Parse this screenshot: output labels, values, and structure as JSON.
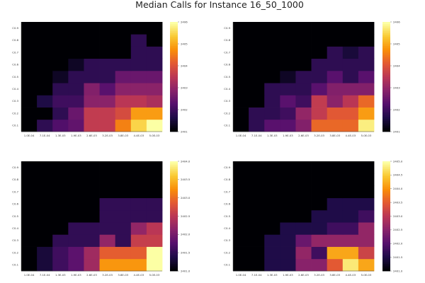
{
  "figure_title": "Median Calls for Instance 16_50_1000",
  "colormap": "inferno",
  "colormap_stops": [
    "#000004",
    "#1f0c48",
    "#550f6d",
    "#88226a",
    "#ba3655",
    "#e35933",
    "#f98e09",
    "#f9c932",
    "#fcffa4"
  ],
  "chart_data": [
    {
      "type": "heatmap",
      "title": "",
      "xlabel": "",
      "ylabel": "",
      "x": [
        "1.0E-04",
        "7.1E-04",
        "1.3E-03",
        "1.9E-03",
        "2.6E-03",
        "3.2E-03",
        "3.8E-03",
        "4.4E-03",
        "5.0E-03"
      ],
      "y": [
        "C0.1",
        "C0.2",
        "C0.3",
        "C0.4",
        "C0.5",
        "C0.6",
        "C0.7",
        "C0.8",
        "C0.9"
      ],
      "z": [
        [
          2401.0,
          2401.8,
          2402.2,
          2402.4,
          2403.6,
          2403.6,
          2404.6,
          2405.5,
          2406.0
        ],
        [
          2401.0,
          2401.0,
          2401.8,
          2402.5,
          2403.6,
          2403.6,
          2403.9,
          2404.9,
          2404.9
        ],
        [
          2401.0,
          2401.6,
          2402.0,
          2402.0,
          2402.9,
          2402.9,
          2403.5,
          2403.5,
          2403.3
        ],
        [
          2401.0,
          2401.0,
          2401.8,
          2401.8,
          2402.8,
          2402.3,
          2402.9,
          2402.9,
          2402.9
        ],
        [
          2401.0,
          2401.0,
          2401.3,
          2401.8,
          2401.8,
          2401.8,
          2402.5,
          2402.5,
          2402.5
        ],
        [
          2401.0,
          2401.0,
          2401.0,
          2401.3,
          2401.8,
          2401.8,
          2401.8,
          2401.8,
          2401.8
        ],
        [
          2401.0,
          2401.0,
          2401.0,
          2401.0,
          2401.0,
          2401.0,
          2401.0,
          2401.8,
          2401.8
        ],
        [
          2401.0,
          2401.0,
          2401.0,
          2401.0,
          2401.0,
          2401.0,
          2401.0,
          2401.8,
          2401.0
        ],
        [
          2401.0,
          2401.0,
          2401.0,
          2401.0,
          2401.0,
          2401.0,
          2401.0,
          2401.0,
          2401.0
        ]
      ],
      "zlim": [
        2401,
        2406
      ],
      "colorbar_ticks": [
        "2401",
        "2402",
        "2403",
        "2404",
        "2405",
        "2406"
      ],
      "legend": "colorbar-right",
      "grid": false
    },
    {
      "type": "heatmap",
      "title": "",
      "xlabel": "",
      "ylabel": "",
      "x": [
        "1.0E-04",
        "7.1E-04",
        "1.3E-03",
        "1.9E-03",
        "2.6E-03",
        "3.2E-03",
        "3.8E-03",
        "4.4E-03",
        "5.0E-03"
      ],
      "y": [
        "C0.1",
        "C0.2",
        "C0.3",
        "C0.4",
        "C0.5",
        "C0.6",
        "C0.7",
        "C0.8",
        "C0.9"
      ],
      "z": [
        [
          2401.0,
          2401.8,
          2402.3,
          2402.3,
          2402.8,
          2404.3,
          2404.3,
          2404.3,
          2405.8
        ],
        [
          2401.0,
          2401.8,
          2401.8,
          2402.0,
          2403.0,
          2403.6,
          2404.1,
          2404.1,
          2404.9
        ],
        [
          2401.0,
          2401.0,
          2401.8,
          2402.3,
          2402.0,
          2403.6,
          2402.9,
          2403.5,
          2404.3
        ],
        [
          2401.0,
          2401.0,
          2401.8,
          2401.8,
          2401.8,
          2402.3,
          2402.8,
          2402.8,
          2402.8
        ],
        [
          2401.0,
          2401.0,
          2401.0,
          2401.3,
          2401.8,
          2401.8,
          2402.3,
          2401.8,
          2402.3
        ],
        [
          2401.0,
          2401.0,
          2401.0,
          2401.0,
          2401.0,
          2401.8,
          2401.8,
          2401.8,
          2401.8
        ],
        [
          2401.0,
          2401.0,
          2401.0,
          2401.0,
          2401.0,
          2401.0,
          2401.8,
          2401.5,
          2401.8
        ],
        [
          2401.0,
          2401.0,
          2401.0,
          2401.0,
          2401.0,
          2401.0,
          2401.0,
          2401.0,
          2401.0
        ],
        [
          2401.0,
          2401.0,
          2401.0,
          2401.0,
          2401.0,
          2401.0,
          2401.0,
          2401.0,
          2401.0
        ]
      ],
      "zlim": [
        2401,
        2406
      ],
      "colorbar_ticks": [
        "2401",
        "2402",
        "2403",
        "2404",
        "2405",
        "2406"
      ],
      "legend": "colorbar-right",
      "grid": false
    },
    {
      "type": "heatmap",
      "title": "",
      "xlabel": "",
      "ylabel": "",
      "x": [
        "1.0E-04",
        "7.1E-04",
        "1.3E-03",
        "1.9E-03",
        "2.6E-03",
        "3.2E-03",
        "3.8E-03",
        "4.4E-03",
        "5.0E-03"
      ],
      "y": [
        "C0.1",
        "C0.2",
        "C0.3",
        "C0.4",
        "C0.5",
        "C0.6",
        "C0.7",
        "C0.8",
        "C0.9"
      ],
      "z": [
        [
          2401.0,
          2401.3,
          2401.6,
          2401.8,
          2402.3,
          2403.3,
          2403.3,
          2403.3,
          2404.0
        ],
        [
          2401.0,
          2401.3,
          2401.6,
          2401.8,
          2402.3,
          2402.9,
          2402.9,
          2402.9,
          2404.0
        ],
        [
          2401.0,
          2401.0,
          2401.5,
          2401.5,
          2401.5,
          2402.2,
          2401.5,
          2402.6,
          2402.6
        ],
        [
          2401.0,
          2401.0,
          2401.0,
          2401.5,
          2401.5,
          2401.5,
          2401.5,
          2402.2,
          2402.5
        ],
        [
          2401.0,
          2401.0,
          2401.0,
          2401.0,
          2401.0,
          2401.5,
          2401.5,
          2401.5,
          2401.5
        ],
        [
          2401.0,
          2401.0,
          2401.0,
          2401.0,
          2401.0,
          2401.5,
          2401.5,
          2401.5,
          2401.5
        ],
        [
          2401.0,
          2401.0,
          2401.0,
          2401.0,
          2401.0,
          2401.0,
          2401.0,
          2401.0,
          2401.0
        ],
        [
          2401.0,
          2401.0,
          2401.0,
          2401.0,
          2401.0,
          2401.0,
          2401.0,
          2401.0,
          2401.0
        ],
        [
          2401.0,
          2401.0,
          2401.0,
          2401.0,
          2401.0,
          2401.0,
          2401.0,
          2401.0,
          2401.0
        ]
      ],
      "zlim": [
        2401.0,
        2404.0
      ],
      "colorbar_ticks": [
        "2401.0",
        "2401.5",
        "2402.0",
        "2402.5",
        "2403.0",
        "2403.5",
        "2404.0"
      ],
      "legend": "colorbar-right",
      "grid": false
    },
    {
      "type": "heatmap",
      "title": "",
      "xlabel": "",
      "ylabel": "",
      "x": [
        "1.0E-04",
        "7.1E-04",
        "1.3E-03",
        "1.9E-03",
        "2.6E-03",
        "3.2E-03",
        "3.8E-03",
        "4.4E-03",
        "5.0E-03"
      ],
      "y": [
        "C0.1",
        "C0.2",
        "C0.3",
        "C0.4",
        "C0.5",
        "C0.6",
        "C0.7",
        "C0.8",
        "C0.9"
      ],
      "z": [
        [
          2401.0,
          2401.0,
          2401.5,
          2401.5,
          2402.5,
          2402.5,
          2403.5,
          2404.8,
          2404.2
        ],
        [
          2401.0,
          2401.0,
          2401.5,
          2401.5,
          2402.6,
          2401.8,
          2404.2,
          2404.2,
          2403.2
        ],
        [
          2401.0,
          2401.0,
          2401.5,
          2401.5,
          2402.2,
          2402.6,
          2402.6,
          2402.6,
          2402.6
        ],
        [
          2401.0,
          2401.0,
          2401.0,
          2401.5,
          2401.5,
          2401.5,
          2401.8,
          2401.8,
          2402.6
        ],
        [
          2401.0,
          2401.0,
          2401.0,
          2401.0,
          2401.0,
          2401.5,
          2401.5,
          2401.5,
          2401.8
        ],
        [
          2401.0,
          2401.0,
          2401.0,
          2401.0,
          2401.0,
          2401.0,
          2401.5,
          2401.5,
          2401.5
        ],
        [
          2401.0,
          2401.0,
          2401.0,
          2401.0,
          2401.0,
          2401.0,
          2401.0,
          2401.0,
          2401.0
        ],
        [
          2401.0,
          2401.0,
          2401.0,
          2401.0,
          2401.0,
          2401.0,
          2401.0,
          2401.0,
          2401.0
        ],
        [
          2401.0,
          2401.0,
          2401.0,
          2401.0,
          2401.0,
          2401.0,
          2401.0,
          2401.0,
          2401.0
        ]
      ],
      "zlim": [
        2401.0,
        2405.0
      ],
      "colorbar_ticks": [
        "2401.0",
        "2401.5",
        "2402.0",
        "2402.5",
        "2403.0",
        "2403.5",
        "2404.0",
        "2404.5",
        "2405.0"
      ],
      "legend": "colorbar-right",
      "grid": false
    }
  ]
}
